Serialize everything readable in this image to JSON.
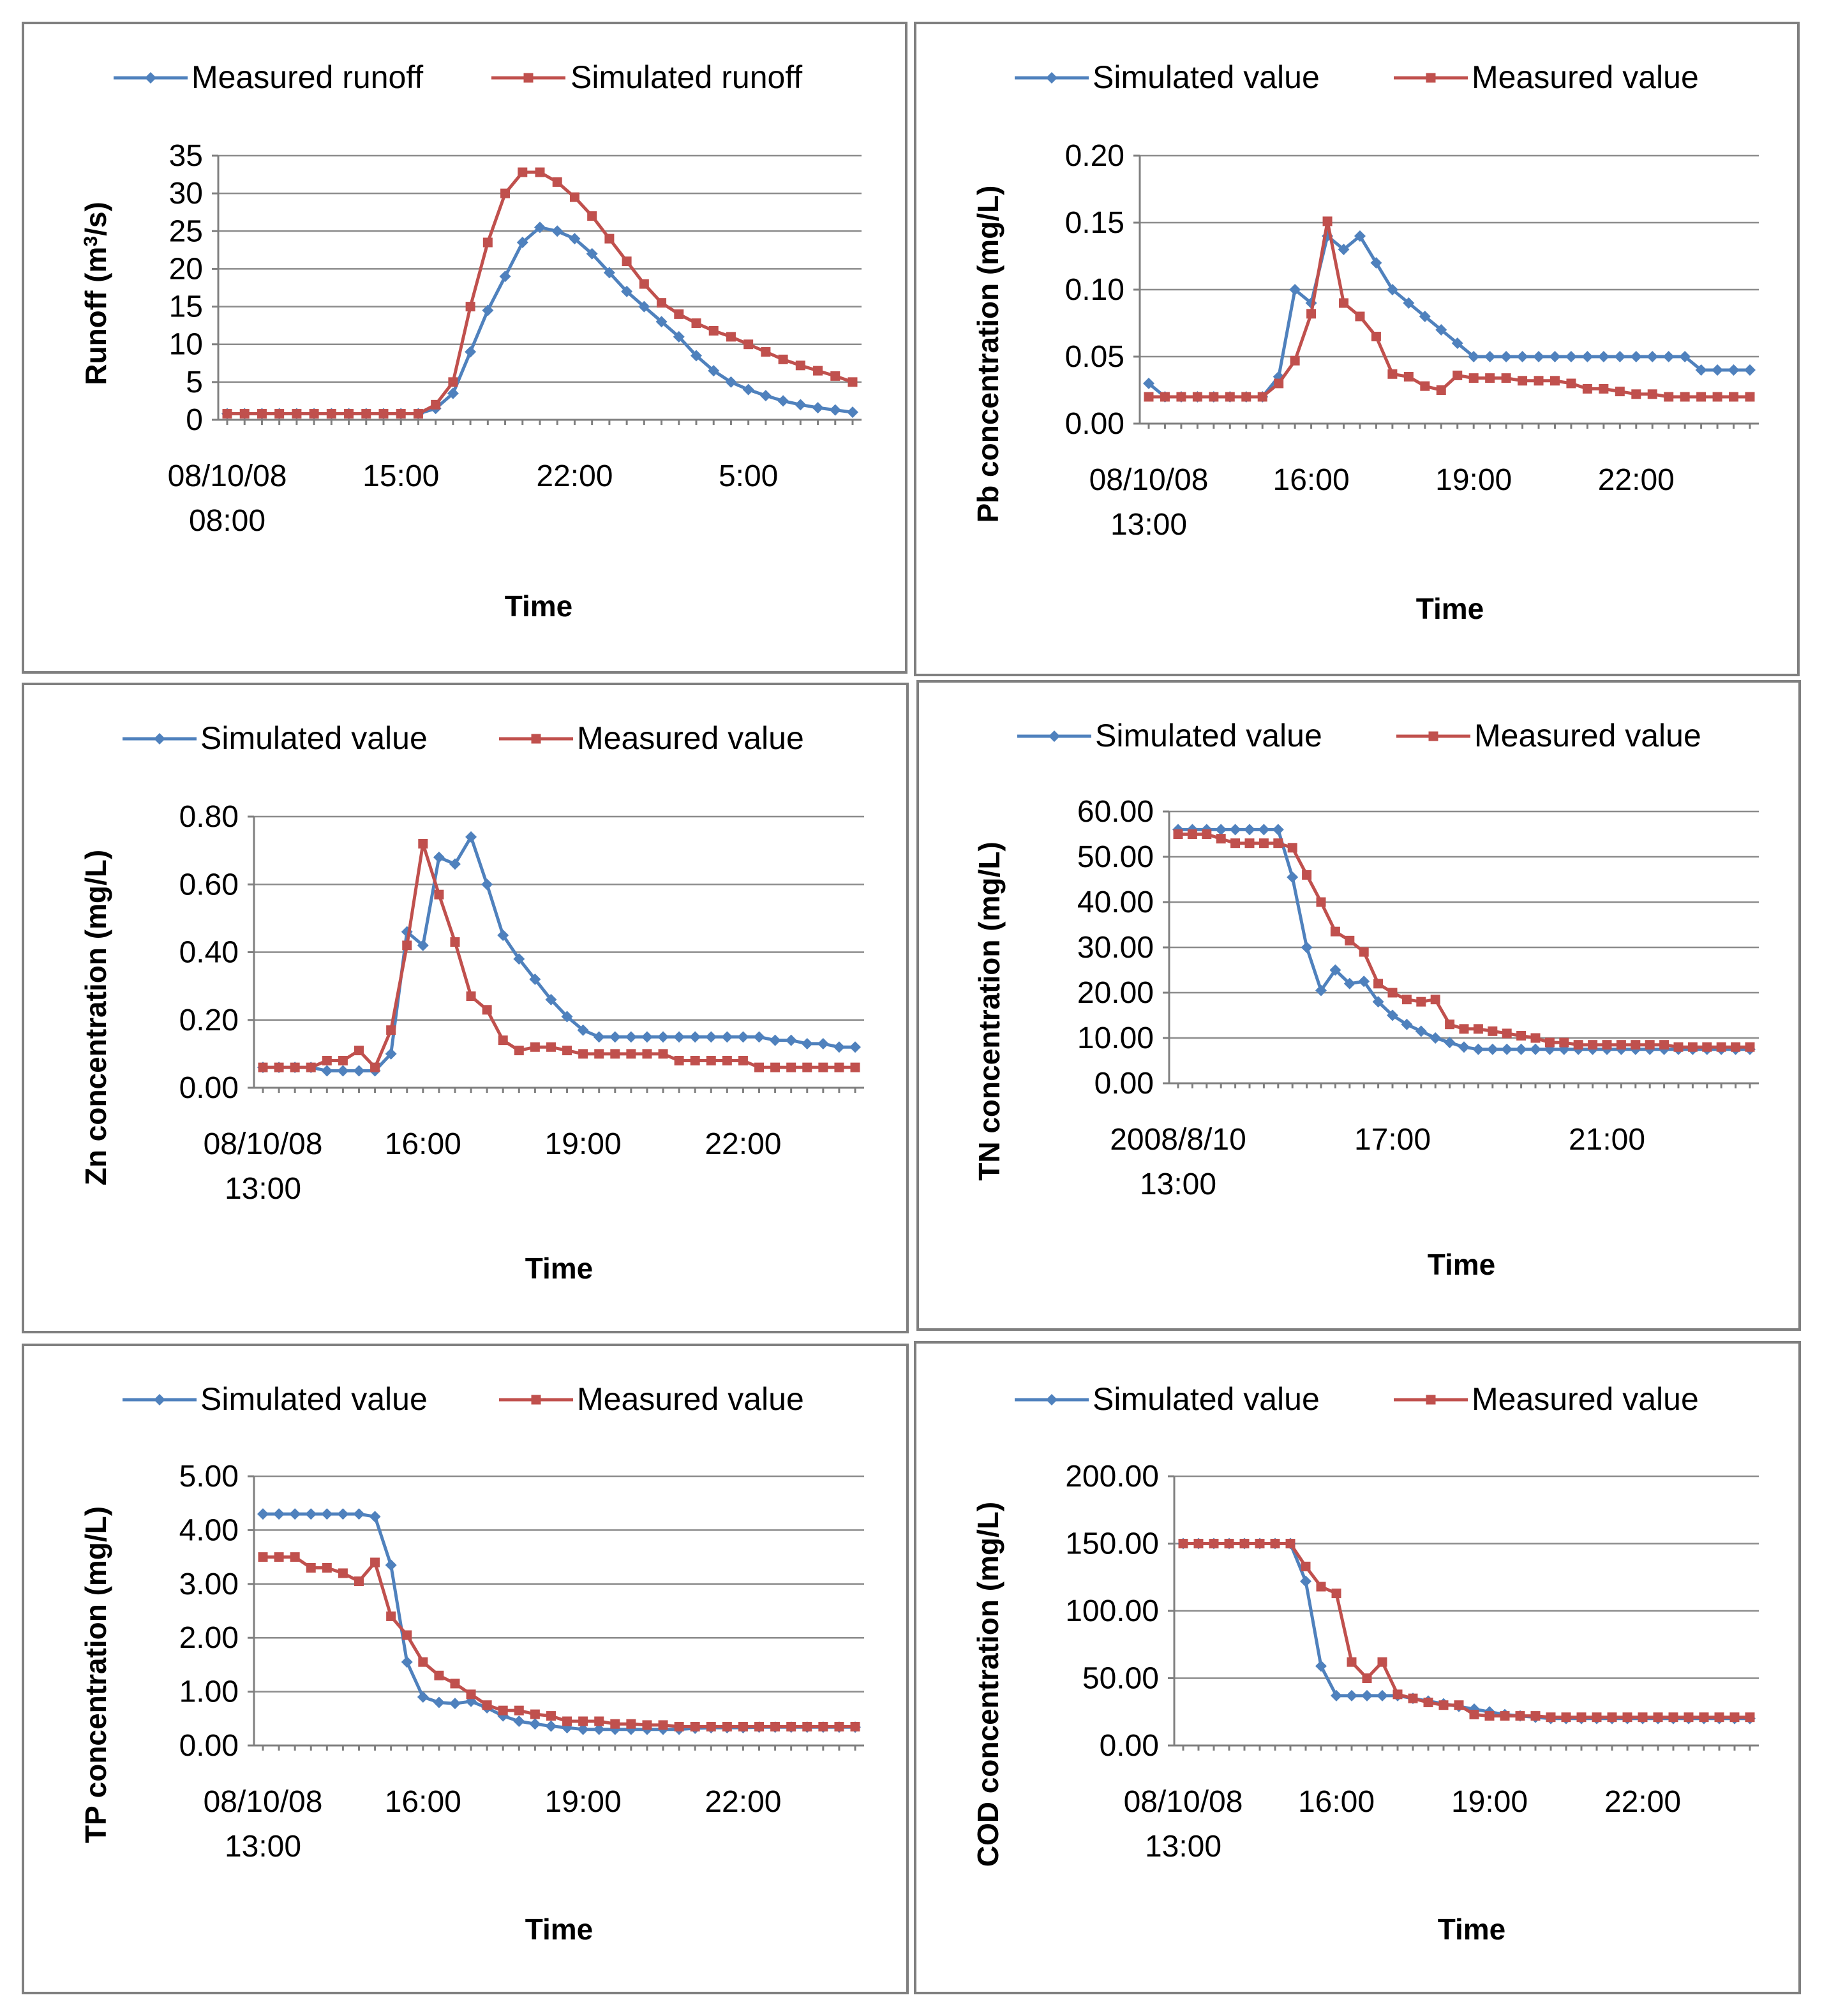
{
  "chart_data": [
    {
      "type": "line",
      "ylabel": "Runoff (m³/s)",
      "ylabel_main": "Runoff (m",
      "ylabel_sup": "3",
      "ylabel_tail": "/s)",
      "xlabel": "Time",
      "ylim": [
        0,
        35
      ],
      "yticks": [
        "0",
        "5",
        "10",
        "15",
        "20",
        "25",
        "30",
        "35"
      ],
      "n_points": 37,
      "xticks": [
        {
          "index": 0,
          "lines": [
            "08/10/08",
            "08:00"
          ]
        },
        {
          "index": 10,
          "lines": [
            "15:00"
          ]
        },
        {
          "index": 20,
          "lines": [
            "22:00"
          ]
        },
        {
          "index": 30,
          "lines": [
            "5:00"
          ]
        }
      ],
      "series": [
        {
          "name": "Measured runoff",
          "color": "#4f81bd",
          "marker": "diamond",
          "values": [
            0.8,
            0.8,
            0.8,
            0.8,
            0.8,
            0.8,
            0.8,
            0.8,
            0.8,
            0.8,
            0.8,
            0.8,
            1.5,
            3.5,
            9,
            14.5,
            19,
            23.5,
            25.5,
            25,
            24,
            22,
            19.5,
            17,
            15,
            13,
            11,
            8.5,
            6.5,
            5,
            4,
            3.2,
            2.5,
            2,
            1.6,
            1.3,
            1
          ]
        },
        {
          "name": "Simulated runoff",
          "color": "#c0504d",
          "marker": "square",
          "values": [
            0.8,
            0.8,
            0.8,
            0.8,
            0.8,
            0.8,
            0.8,
            0.8,
            0.8,
            0.8,
            0.8,
            0.8,
            2,
            5,
            15,
            23.5,
            30,
            32.8,
            32.8,
            31.5,
            29.5,
            27,
            24,
            21,
            18,
            15.5,
            14,
            12.8,
            11.8,
            11,
            10,
            9,
            8,
            7.2,
            6.5,
            5.8,
            5
          ]
        }
      ]
    },
    {
      "type": "line",
      "ylabel": "Pb  concentration (mg/L)",
      "xlabel": "Time",
      "ylim": [
        0,
        0.2
      ],
      "yticks": [
        "0.00",
        "0.05",
        "0.10",
        "0.15",
        "0.20"
      ],
      "n_points": 38,
      "xticks": [
        {
          "index": 0,
          "lines": [
            "08/10/08",
            "13:00"
          ]
        },
        {
          "index": 10,
          "lines": [
            "16:00"
          ]
        },
        {
          "index": 20,
          "lines": [
            "19:00"
          ]
        },
        {
          "index": 30,
          "lines": [
            "22:00"
          ]
        }
      ],
      "series": [
        {
          "name": "Simulated value",
          "color": "#4f81bd",
          "marker": "diamond",
          "values": [
            0.03,
            0.02,
            0.02,
            0.02,
            0.02,
            0.02,
            0.02,
            0.02,
            0.035,
            0.1,
            0.09,
            0.14,
            0.13,
            0.14,
            0.12,
            0.1,
            0.09,
            0.08,
            0.07,
            0.06,
            0.05,
            0.05,
            0.05,
            0.05,
            0.05,
            0.05,
            0.05,
            0.05,
            0.05,
            0.05,
            0.05,
            0.05,
            0.05,
            0.05,
            0.04,
            0.04,
            0.04,
            0.04
          ]
        },
        {
          "name": "Measured value",
          "color": "#c0504d",
          "marker": "square",
          "values": [
            0.02,
            0.02,
            0.02,
            0.02,
            0.02,
            0.02,
            0.02,
            0.02,
            0.03,
            0.047,
            0.082,
            0.151,
            0.09,
            0.08,
            0.065,
            0.037,
            0.035,
            0.028,
            0.025,
            0.036,
            0.034,
            0.034,
            0.034,
            0.032,
            0.032,
            0.032,
            0.03,
            0.026,
            0.026,
            0.024,
            0.022,
            0.022,
            0.02,
            0.02,
            0.02,
            0.02,
            0.02,
            0.02
          ]
        }
      ]
    },
    {
      "type": "line",
      "ylabel": "Zn  concentration (mg/L)",
      "xlabel": "Time",
      "ylim": [
        0,
        0.8
      ],
      "yticks": [
        "0.00",
        "0.20",
        "0.40",
        "0.60",
        "0.80"
      ],
      "n_points": 38,
      "xticks": [
        {
          "index": 0,
          "lines": [
            "08/10/08",
            "13:00"
          ]
        },
        {
          "index": 10,
          "lines": [
            "16:00"
          ]
        },
        {
          "index": 20,
          "lines": [
            "19:00"
          ]
        },
        {
          "index": 30,
          "lines": [
            "22:00"
          ]
        }
      ],
      "series": [
        {
          "name": "Simulated value",
          "color": "#4f81bd",
          "marker": "diamond",
          "values": [
            0.06,
            0.06,
            0.06,
            0.06,
            0.05,
            0.05,
            0.05,
            0.05,
            0.1,
            0.46,
            0.42,
            0.68,
            0.66,
            0.74,
            0.6,
            0.45,
            0.38,
            0.32,
            0.26,
            0.21,
            0.17,
            0.15,
            0.15,
            0.15,
            0.15,
            0.15,
            0.15,
            0.15,
            0.15,
            0.15,
            0.15,
            0.15,
            0.14,
            0.14,
            0.13,
            0.13,
            0.12,
            0.12
          ]
        },
        {
          "name": "Measured value",
          "color": "#c0504d",
          "marker": "square",
          "values": [
            0.06,
            0.06,
            0.06,
            0.06,
            0.08,
            0.08,
            0.11,
            0.06,
            0.17,
            0.42,
            0.72,
            0.57,
            0.43,
            0.27,
            0.23,
            0.14,
            0.11,
            0.12,
            0.12,
            0.11,
            0.1,
            0.1,
            0.1,
            0.1,
            0.1,
            0.1,
            0.08,
            0.08,
            0.08,
            0.08,
            0.08,
            0.06,
            0.06,
            0.06,
            0.06,
            0.06,
            0.06,
            0.06
          ]
        }
      ]
    },
    {
      "type": "line",
      "ylabel": "TN  concentration (mg/L)",
      "xlabel": "Time",
      "ylim": [
        0,
        60
      ],
      "yticks": [
        "0.00",
        "10.00",
        "20.00",
        "30.00",
        "40.00",
        "50.00",
        "60.00"
      ],
      "n_points": 41,
      "xticks": [
        {
          "index": 0,
          "lines": [
            "2008/8/10",
            "13:00"
          ]
        },
        {
          "index": 15,
          "lines": [
            "17:00"
          ]
        },
        {
          "index": 30,
          "lines": [
            "21:00"
          ]
        }
      ],
      "series": [
        {
          "name": "Simulated value",
          "color": "#4f81bd",
          "marker": "diamond",
          "values": [
            56,
            56,
            56,
            56,
            56,
            56,
            56,
            56,
            45.5,
            30,
            20.5,
            25,
            22,
            22.5,
            18,
            15,
            13,
            11.5,
            10,
            9,
            8,
            7.5,
            7.5,
            7.5,
            7.5,
            7.5,
            7.5,
            7.5,
            7.5,
            7.5,
            7.5,
            7.5,
            7.5,
            7.5,
            7.5,
            7.5,
            7.5,
            7.5,
            7.5,
            7.5,
            7.5
          ]
        },
        {
          "name": "Measured value",
          "color": "#c0504d",
          "marker": "square",
          "values": [
            55,
            55,
            55,
            54,
            53,
            53,
            53,
            53,
            52,
            46,
            40,
            33.5,
            31.5,
            29,
            22,
            20,
            18.5,
            18,
            18.5,
            13,
            12,
            12,
            11.5,
            11,
            10.5,
            10,
            9,
            9,
            8.5,
            8.5,
            8.5,
            8.5,
            8.5,
            8.5,
            8.5,
            8,
            8,
            8,
            8,
            8,
            8
          ]
        }
      ]
    },
    {
      "type": "line",
      "ylabel": "TP  concentration (mg/L)",
      "xlabel": "Time",
      "ylim": [
        0,
        5
      ],
      "yticks": [
        "0.00",
        "1.00",
        "2.00",
        "3.00",
        "4.00",
        "5.00"
      ],
      "n_points": 38,
      "xticks": [
        {
          "index": 0,
          "lines": [
            "08/10/08",
            "13:00"
          ]
        },
        {
          "index": 10,
          "lines": [
            "16:00"
          ]
        },
        {
          "index": 20,
          "lines": [
            "19:00"
          ]
        },
        {
          "index": 30,
          "lines": [
            "22:00"
          ]
        }
      ],
      "series": [
        {
          "name": "Simulated value",
          "color": "#4f81bd",
          "marker": "diamond",
          "values": [
            4.3,
            4.3,
            4.3,
            4.3,
            4.3,
            4.3,
            4.3,
            4.25,
            3.35,
            1.55,
            0.9,
            0.8,
            0.78,
            0.82,
            0.7,
            0.55,
            0.45,
            0.4,
            0.36,
            0.33,
            0.3,
            0.3,
            0.3,
            0.3,
            0.3,
            0.3,
            0.3,
            0.32,
            0.33,
            0.33,
            0.33,
            0.34,
            0.34,
            0.34,
            0.34,
            0.34,
            0.34,
            0.34
          ]
        },
        {
          "name": "Measured value",
          "color": "#c0504d",
          "marker": "square",
          "values": [
            3.5,
            3.5,
            3.5,
            3.3,
            3.3,
            3.2,
            3.05,
            3.4,
            2.4,
            2.05,
            1.55,
            1.3,
            1.15,
            0.95,
            0.75,
            0.65,
            0.65,
            0.58,
            0.55,
            0.45,
            0.45,
            0.45,
            0.4,
            0.4,
            0.38,
            0.38,
            0.35,
            0.35,
            0.35,
            0.35,
            0.35,
            0.35,
            0.35,
            0.35,
            0.35,
            0.35,
            0.35,
            0.35
          ]
        }
      ]
    },
    {
      "type": "line",
      "ylabel": "COD  concentration (mg/L)",
      "xlabel": "Time",
      "ylim": [
        0,
        200
      ],
      "yticks": [
        "0.00",
        "50.00",
        "100.00",
        "150.00",
        "200.00"
      ],
      "n_points": 38,
      "xticks": [
        {
          "index": 0,
          "lines": [
            "08/10/08",
            "13:00"
          ]
        },
        {
          "index": 10,
          "lines": [
            "16:00"
          ]
        },
        {
          "index": 20,
          "lines": [
            "19:00"
          ]
        },
        {
          "index": 30,
          "lines": [
            "22:00"
          ]
        }
      ],
      "series": [
        {
          "name": "Simulated value",
          "color": "#4f81bd",
          "marker": "diamond",
          "values": [
            150,
            150,
            150,
            150,
            150,
            150,
            150,
            150,
            122,
            59,
            37,
            37,
            37,
            37,
            37,
            35,
            33,
            31,
            29,
            27,
            25,
            23,
            22,
            21,
            20,
            20,
            20,
            20,
            20,
            20,
            20,
            20,
            20,
            20,
            20,
            20,
            20,
            20
          ]
        },
        {
          "name": "Measured value",
          "color": "#c0504d",
          "marker": "square",
          "values": [
            150,
            150,
            150,
            150,
            150,
            150,
            150,
            150,
            133,
            118,
            113,
            62,
            50,
            62,
            38,
            35,
            32,
            30,
            30,
            23,
            22,
            22,
            22,
            22,
            21,
            21,
            21,
            21,
            21,
            21,
            21,
            21,
            21,
            21,
            21,
            21,
            21,
            21
          ]
        }
      ]
    }
  ]
}
